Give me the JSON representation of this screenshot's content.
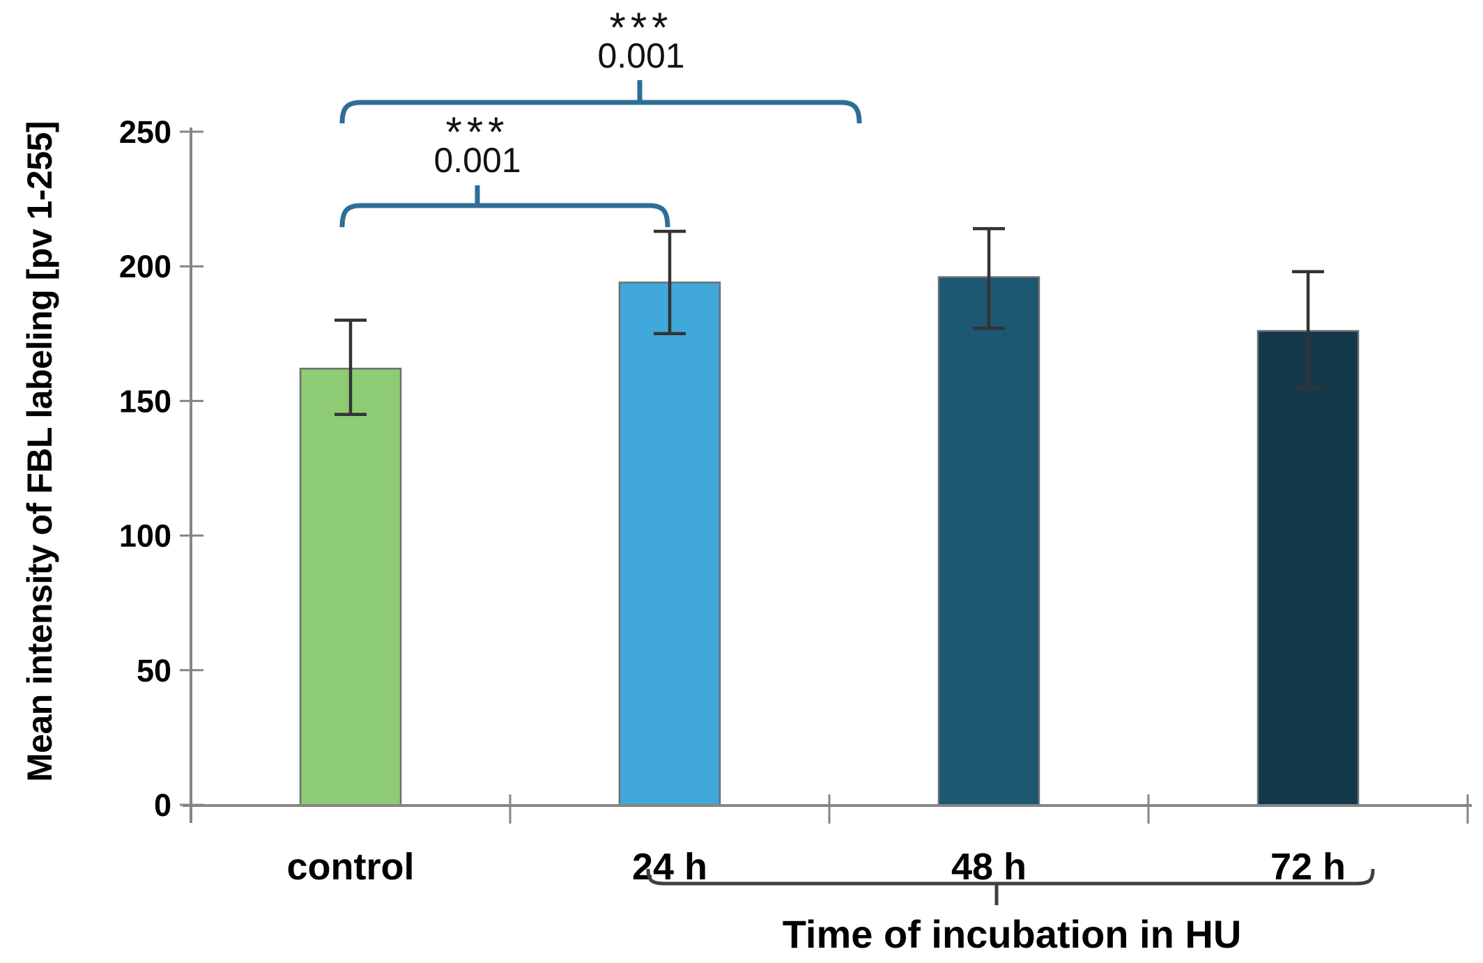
{
  "chart_data": {
    "type": "bar",
    "title": "",
    "ylabel": "Mean intensity of FBL labeling [pv 1-255]",
    "xlabel": "Time of incubation in HU",
    "categories": [
      "control",
      "24 h",
      "48 h",
      "72 h"
    ],
    "values": [
      162,
      194,
      196,
      176
    ],
    "error_low": [
      145,
      175,
      177,
      155
    ],
    "error_high": [
      180,
      213,
      214,
      198
    ],
    "ylim": [
      0,
      250
    ],
    "yticks": [
      0,
      50,
      100,
      150,
      200,
      250
    ],
    "grid": false,
    "legend": false,
    "bar_colors": [
      "#8DCB74",
      "#41A8DB",
      "#1C5871",
      "#14384C"
    ],
    "significance": [
      {
        "between": [
          "control",
          "24 h"
        ],
        "stars": "***",
        "p_value": "0.001"
      },
      {
        "between": [
          "control",
          "48 h"
        ],
        "stars": "***",
        "p_value": "0.001"
      }
    ],
    "x_group_brace": {
      "from": "24 h",
      "to": "72 h",
      "label": "Time of incubation in HU"
    }
  },
  "style": {
    "background": "#FFFFFF",
    "axis_color": "#858585",
    "bar_border_color": "#6E6E6E",
    "error_bar_color": "#333333",
    "bracket_color": "#2E6E96",
    "brace_color": "#3F3F3F",
    "text_color": "#000000"
  }
}
